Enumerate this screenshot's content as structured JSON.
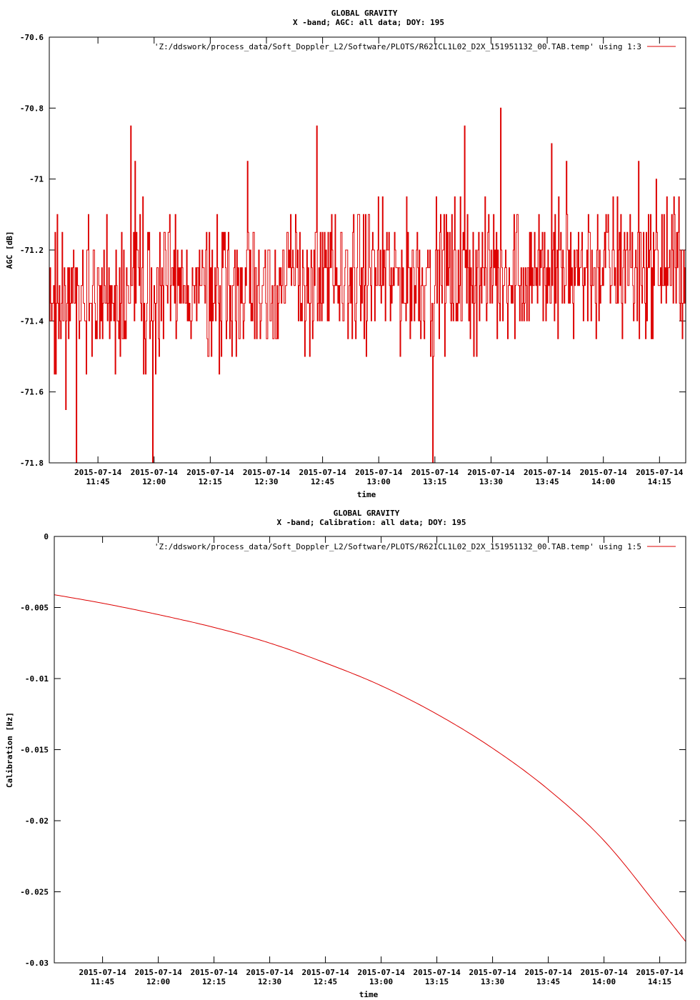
{
  "colors": {
    "series": "#dd0000",
    "axis": "#000000",
    "background": "#ffffff"
  },
  "chart_data": [
    {
      "type": "line",
      "title": "GLOBAL GRAVITY",
      "subtitle": "X -band; AGC: all data; DOY: 195",
      "xlabel": "time",
      "ylabel": "AGC [dB]",
      "xlim": [
        "2015-07-14 11:32",
        "2015-07-14 14:22"
      ],
      "ylim": [
        -71.8,
        -70.6
      ],
      "yticks": [
        -70.6,
        -70.8,
        -71,
        -71.2,
        -71.4,
        -71.6,
        -71.8
      ],
      "ytick_labels": [
        "-70.6",
        "-70.8",
        "-71",
        "-71.2",
        "-71.4",
        "-71.6",
        "-71.8"
      ],
      "xticks": [
        "11:45",
        "12:00",
        "12:15",
        "12:30",
        "12:45",
        "13:00",
        "13:15",
        "13:30",
        "13:45",
        "14:00",
        "14:15"
      ],
      "xtick_date": "2015-07-14",
      "grid": false,
      "legend_position": "top-right",
      "series": [
        {
          "name": "'Z:/ddswork/process_data/Soft_Doppler_L2/Software/PLOTS/R62ICL1L02_D2X_151951132_00.TAB.temp' using 1:3",
          "x_start": "2015-07-14 11:32",
          "x_end": "2015-07-14 14:22",
          "mean": -71.32,
          "spread": 0.3,
          "min": -71.8,
          "max": -70.8
        }
      ]
    },
    {
      "type": "line",
      "title": "GLOBAL GRAVITY",
      "subtitle": "X -band; Calibration: all data; DOY: 195",
      "xlabel": "time",
      "ylabel": "Calibration [Hz]",
      "xlim": [
        "2015-07-14 11:32",
        "2015-07-14 14:22"
      ],
      "ylim": [
        -0.03,
        0
      ],
      "yticks": [
        0,
        -0.005,
        -0.01,
        -0.015,
        -0.02,
        -0.025,
        -0.03
      ],
      "ytick_labels": [
        "0",
        "-0.005",
        "-0.01",
        "-0.015",
        "-0.02",
        "-0.025",
        "-0.03"
      ],
      "xticks": [
        "11:45",
        "12:00",
        "12:15",
        "12:30",
        "12:45",
        "13:00",
        "13:15",
        "13:30",
        "13:45",
        "14:00",
        "14:15"
      ],
      "xtick_date": "2015-07-14",
      "grid": false,
      "legend_position": "top-right",
      "series": [
        {
          "name": "'Z:/ddswork/process_data/Soft_Doppler_L2/Software/PLOTS/R62ICL1L02_D2X_151951132_00.TAB.temp' using 1:5",
          "x": [
            "11:32",
            "11:45",
            "12:00",
            "12:15",
            "12:30",
            "12:45",
            "13:00",
            "13:15",
            "13:30",
            "13:45",
            "14:00",
            "14:15",
            "14:22"
          ],
          "y": [
            -0.0041,
            -0.0047,
            -0.0055,
            -0.0064,
            -0.0075,
            -0.0089,
            -0.0105,
            -0.0125,
            -0.0149,
            -0.0178,
            -0.0214,
            -0.0262,
            -0.0285
          ]
        }
      ]
    }
  ]
}
